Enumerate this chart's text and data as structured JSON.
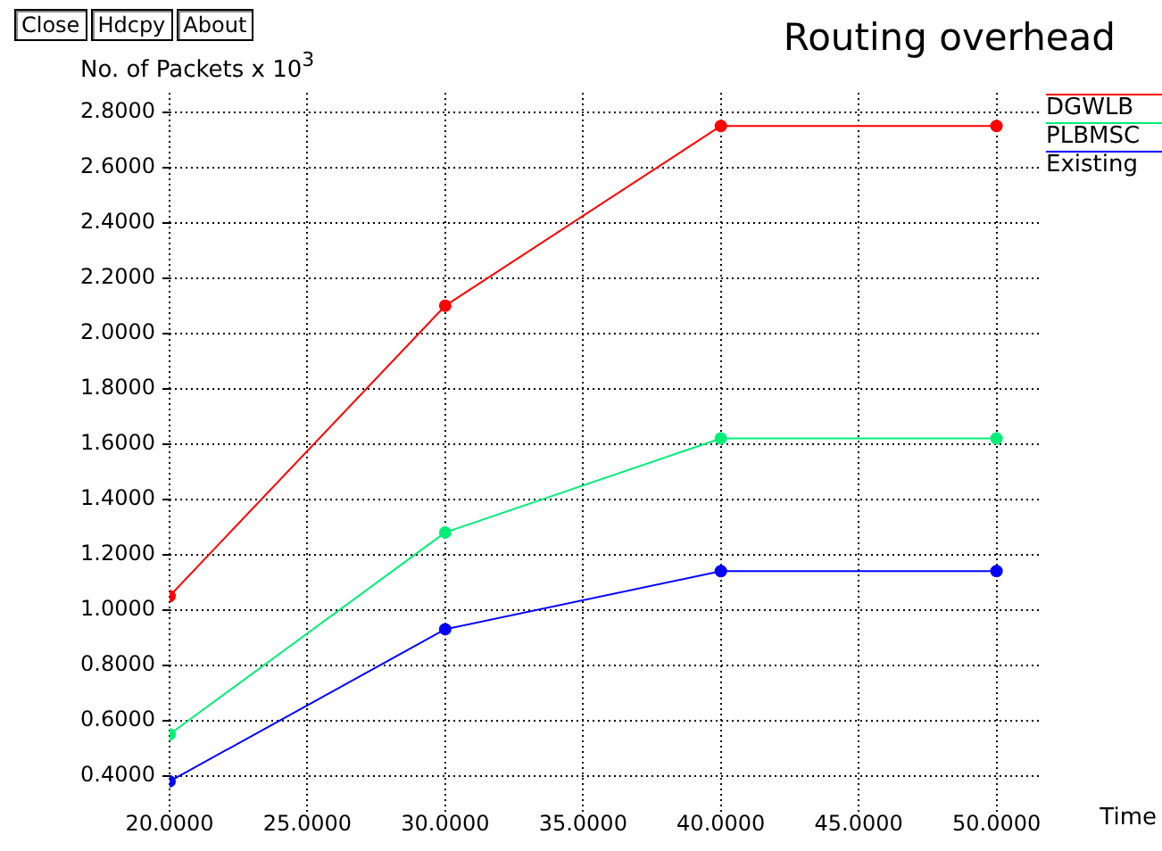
{
  "chart_data": {
    "type": "line",
    "title": "Routing overhead",
    "xlabel": "Time",
    "ylabel": "No. of Packets x 10$^{3}$",
    "annotations": [
      "Close",
      "Hdcpy",
      "About"
    ],
    "x": [
      20,
      30,
      40,
      50
    ],
    "series": [
      {
        "name": "DGWLB",
        "color": "#ff0000",
        "values": [
          1.05,
          2.1,
          2.75,
          2.75
        ]
      },
      {
        "name": "PLBMSC",
        "color": "#00ee77",
        "values": [
          0.55,
          1.28,
          1.62,
          1.62
        ]
      },
      {
        "name": "Existing",
        "color": "#0000ff",
        "values": [
          0.38,
          0.93,
          1.14,
          1.14
        ]
      }
    ],
    "xlim": [
      20,
      51.6
    ],
    "ylim": [
      0.27,
      2.87
    ],
    "xticks": [
      {
        "value": 20,
        "label": "20.0000"
      },
      {
        "value": 25,
        "label": "25.0000"
      },
      {
        "value": 30,
        "label": "30.0000"
      },
      {
        "value": 35,
        "label": "35.0000"
      },
      {
        "value": 40,
        "label": "40.0000"
      },
      {
        "value": 45,
        "label": "45.0000"
      },
      {
        "value": 50,
        "label": "50.0000"
      }
    ],
    "yticks": [
      {
        "value": 0.4,
        "label": "0.4000"
      },
      {
        "value": 0.6,
        "label": "0.6000"
      },
      {
        "value": 0.8,
        "label": "0.8000"
      },
      {
        "value": 1.0,
        "label": "1.0000"
      },
      {
        "value": 1.2,
        "label": "1.2000"
      },
      {
        "value": 1.4,
        "label": "1.4000"
      },
      {
        "value": 1.6,
        "label": "1.6000"
      },
      {
        "value": 1.8,
        "label": "1.8000"
      },
      {
        "value": 2.0,
        "label": "2.0000"
      },
      {
        "value": 2.2,
        "label": "2.2000"
      },
      {
        "value": 2.4,
        "label": "2.4000"
      },
      {
        "value": 2.6,
        "label": "2.6000"
      },
      {
        "value": 2.8,
        "label": "2.8000"
      }
    ],
    "grid": true,
    "legend": "right",
    "marker": "circle",
    "line_style": "solid"
  }
}
